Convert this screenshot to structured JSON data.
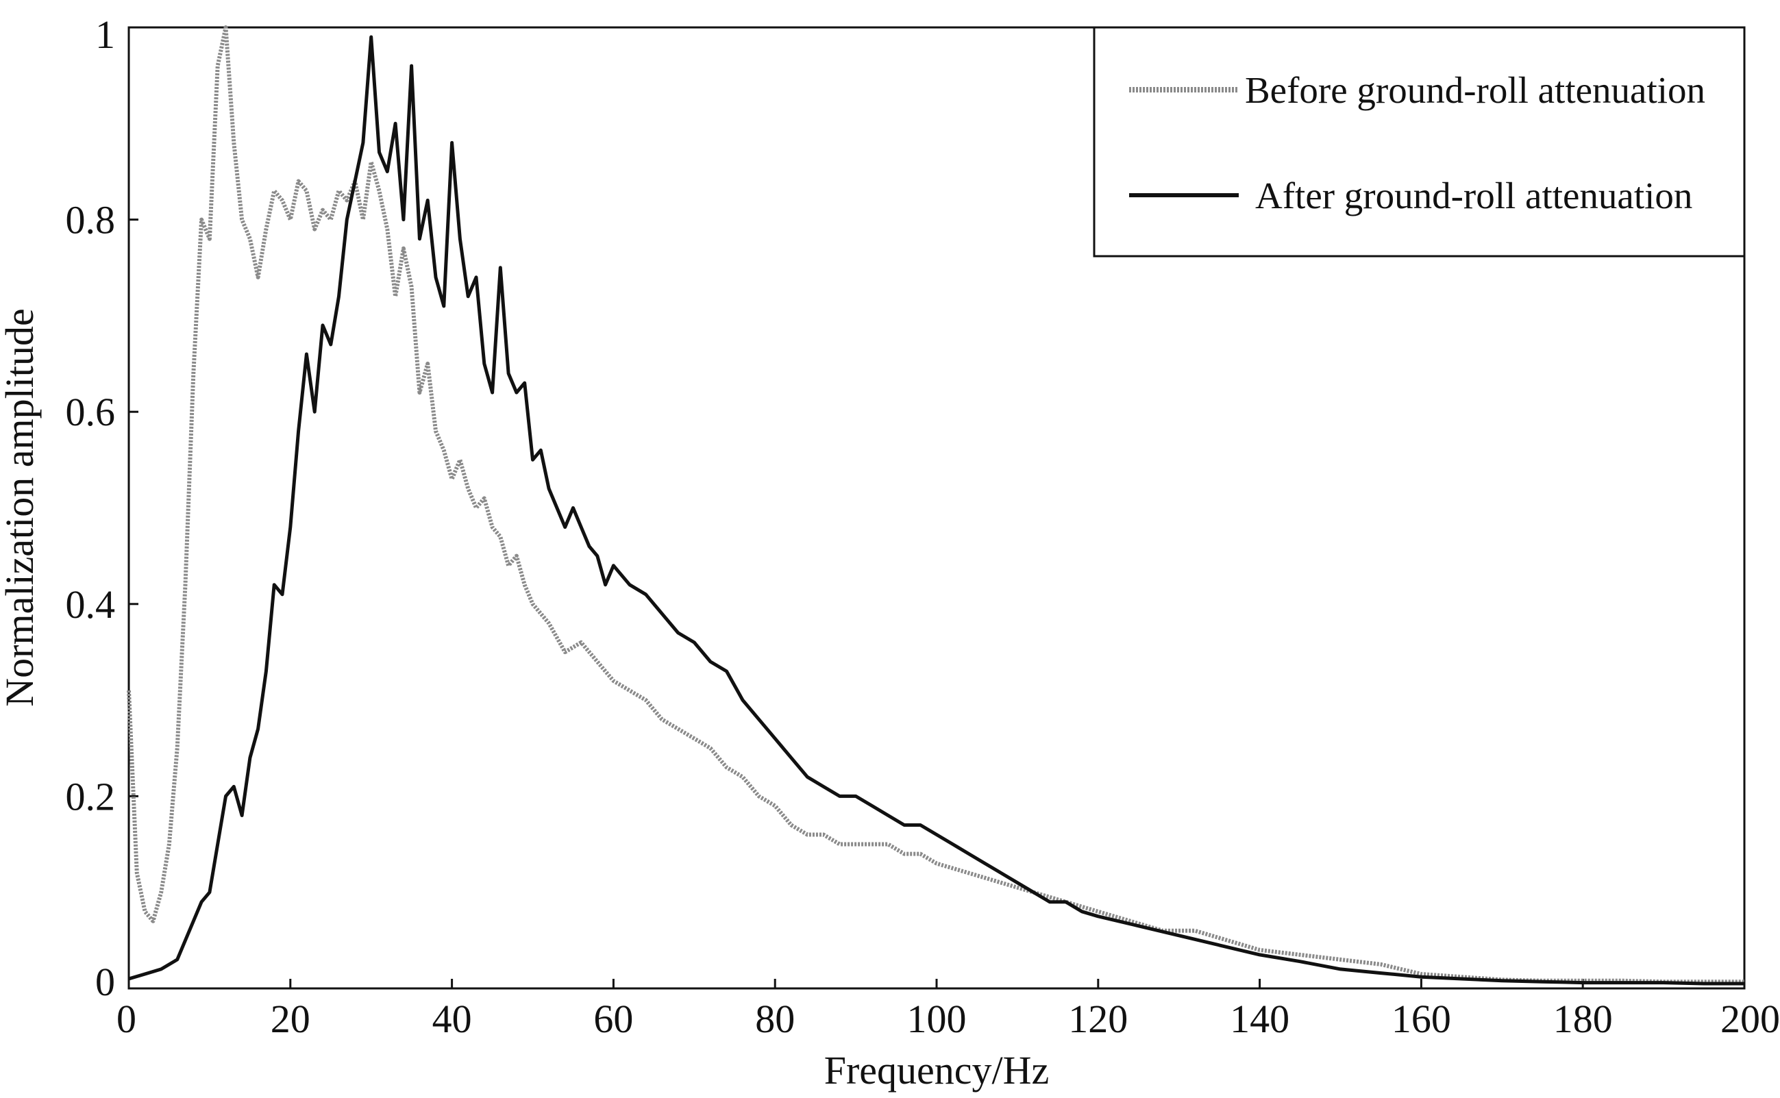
{
  "chart_data": {
    "type": "line",
    "title": "",
    "xlabel": "Frequency/Hz",
    "ylabel": "Normalization amplitude",
    "xlim": [
      0,
      200
    ],
    "ylim": [
      0,
      1
    ],
    "xticks": [
      "0",
      "20",
      "40",
      "60",
      "80",
      "100",
      "120",
      "140",
      "160",
      "180",
      "200"
    ],
    "yticks": [
      "0",
      "0.2",
      "0.4",
      "0.6",
      "0.8",
      "1"
    ],
    "grid": false,
    "legend_position": "top-right",
    "series": [
      {
        "name": "Before ground-roll attenuation",
        "color": "#8a8a8a",
        "style": "dotted",
        "x": [
          0,
          1,
          2,
          3,
          4,
          5,
          6,
          7,
          8,
          9,
          10,
          11,
          12,
          13,
          14,
          15,
          16,
          17,
          18,
          19,
          20,
          21,
          22,
          23,
          24,
          25,
          26,
          27,
          28,
          29,
          30,
          31,
          32,
          33,
          34,
          35,
          36,
          37,
          38,
          39,
          40,
          41,
          42,
          43,
          44,
          45,
          46,
          47,
          48,
          49,
          50,
          52,
          54,
          56,
          58,
          60,
          62,
          64,
          66,
          68,
          70,
          72,
          74,
          76,
          78,
          80,
          82,
          84,
          86,
          88,
          90,
          92,
          94,
          96,
          98,
          100,
          104,
          108,
          112,
          116,
          120,
          124,
          128,
          132,
          136,
          140,
          145,
          150,
          155,
          160,
          165,
          170,
          175,
          180,
          185,
          190,
          195,
          200
        ],
        "y": [
          0.31,
          0.12,
          0.08,
          0.07,
          0.1,
          0.15,
          0.25,
          0.42,
          0.64,
          0.8,
          0.78,
          0.96,
          1.0,
          0.88,
          0.8,
          0.78,
          0.74,
          0.79,
          0.83,
          0.82,
          0.8,
          0.84,
          0.83,
          0.79,
          0.81,
          0.8,
          0.83,
          0.82,
          0.84,
          0.8,
          0.86,
          0.83,
          0.79,
          0.72,
          0.77,
          0.73,
          0.62,
          0.65,
          0.58,
          0.56,
          0.53,
          0.55,
          0.52,
          0.5,
          0.51,
          0.48,
          0.47,
          0.44,
          0.45,
          0.42,
          0.4,
          0.38,
          0.35,
          0.36,
          0.34,
          0.32,
          0.31,
          0.3,
          0.28,
          0.27,
          0.26,
          0.25,
          0.23,
          0.22,
          0.2,
          0.19,
          0.17,
          0.16,
          0.16,
          0.15,
          0.15,
          0.15,
          0.15,
          0.14,
          0.14,
          0.13,
          0.12,
          0.11,
          0.1,
          0.09,
          0.08,
          0.07,
          0.06,
          0.06,
          0.05,
          0.04,
          0.035,
          0.03,
          0.025,
          0.015,
          0.012,
          0.009,
          0.008,
          0.008,
          0.008,
          0.007,
          0.007,
          0.007
        ]
      },
      {
        "name": "After ground-roll attenuation",
        "color": "#111111",
        "style": "solid",
        "x": [
          0,
          2,
          4,
          6,
          7,
          8,
          9,
          10,
          11,
          12,
          13,
          14,
          15,
          16,
          17,
          18,
          19,
          20,
          21,
          22,
          23,
          24,
          25,
          26,
          27,
          28,
          29,
          30,
          31,
          32,
          33,
          34,
          35,
          36,
          37,
          38,
          39,
          40,
          41,
          42,
          43,
          44,
          45,
          46,
          47,
          48,
          49,
          50,
          51,
          52,
          53,
          54,
          55,
          56,
          57,
          58,
          59,
          60,
          62,
          64,
          66,
          68,
          70,
          72,
          74,
          76,
          78,
          80,
          82,
          84,
          86,
          88,
          90,
          92,
          94,
          96,
          98,
          100,
          102,
          104,
          106,
          108,
          110,
          112,
          114,
          116,
          118,
          120,
          125,
          130,
          135,
          140,
          145,
          150,
          155,
          160,
          165,
          170,
          175,
          180,
          185,
          190,
          195,
          200
        ],
        "y": [
          0.01,
          0.015,
          0.02,
          0.03,
          0.05,
          0.07,
          0.09,
          0.1,
          0.15,
          0.2,
          0.21,
          0.18,
          0.24,
          0.27,
          0.33,
          0.42,
          0.41,
          0.48,
          0.58,
          0.66,
          0.6,
          0.69,
          0.67,
          0.72,
          0.8,
          0.84,
          0.88,
          0.99,
          0.87,
          0.85,
          0.9,
          0.8,
          0.96,
          0.78,
          0.82,
          0.74,
          0.71,
          0.88,
          0.78,
          0.72,
          0.74,
          0.65,
          0.62,
          0.75,
          0.64,
          0.62,
          0.63,
          0.55,
          0.56,
          0.52,
          0.5,
          0.48,
          0.5,
          0.48,
          0.46,
          0.45,
          0.42,
          0.44,
          0.42,
          0.41,
          0.39,
          0.37,
          0.36,
          0.34,
          0.33,
          0.3,
          0.28,
          0.26,
          0.24,
          0.22,
          0.21,
          0.2,
          0.2,
          0.19,
          0.18,
          0.17,
          0.17,
          0.16,
          0.15,
          0.14,
          0.13,
          0.12,
          0.11,
          0.1,
          0.09,
          0.09,
          0.08,
          0.075,
          0.065,
          0.055,
          0.045,
          0.035,
          0.028,
          0.02,
          0.016,
          0.012,
          0.01,
          0.008,
          0.007,
          0.006,
          0.006,
          0.006,
          0.005,
          0.005
        ]
      }
    ]
  }
}
